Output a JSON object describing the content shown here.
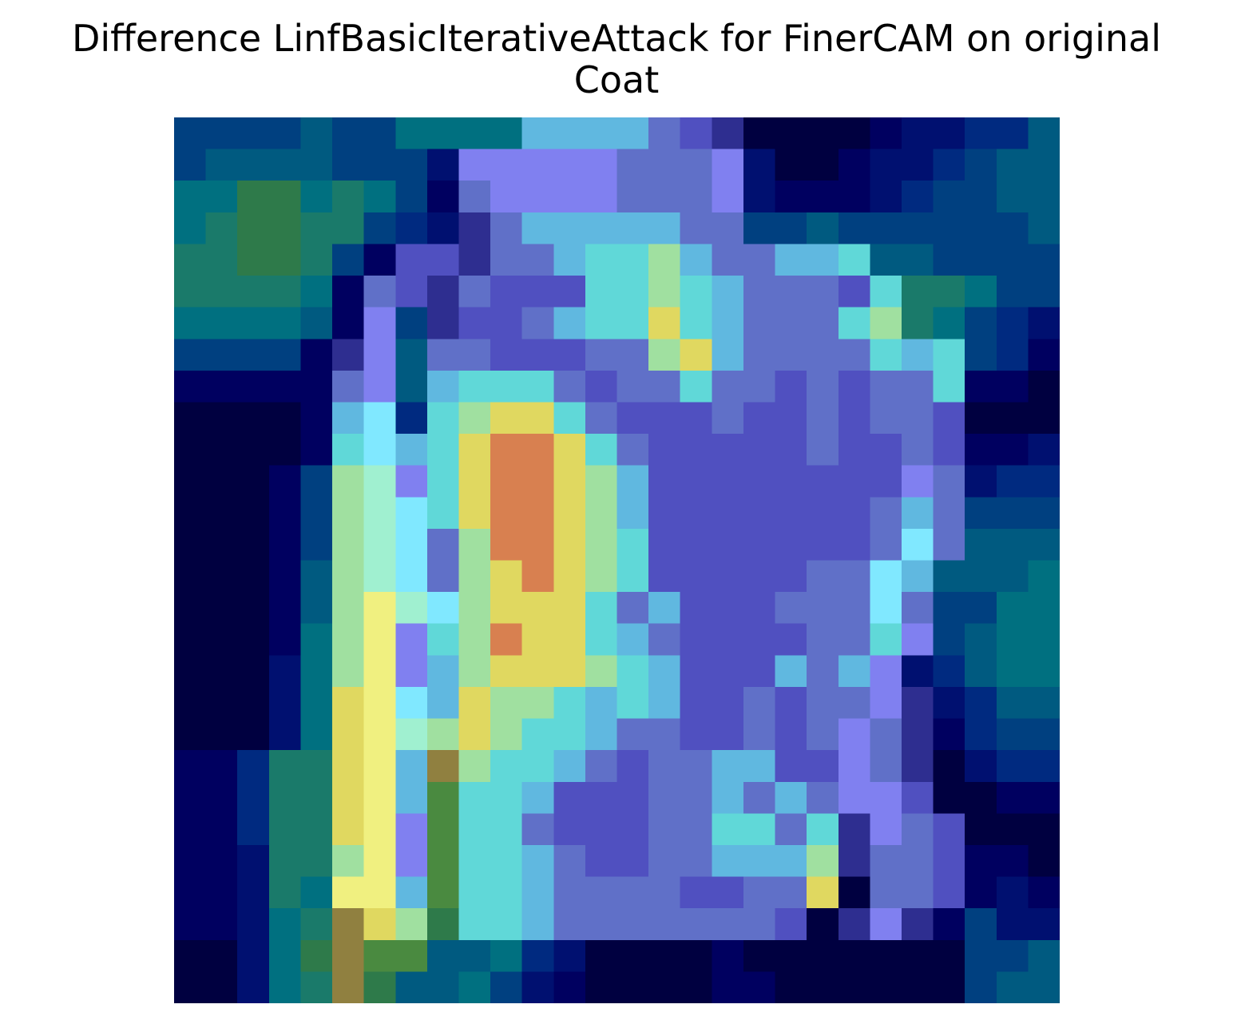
{
  "figure": {
    "title_line1": "Difference LinfBasicIterativeAttack for FinerCAM on original",
    "title_line2": "Coat"
  },
  "heatmap": {
    "description": "Grad-CAM style attribution overlay on a coat image, jet colormap blended with grayscale image; 28x28 grid",
    "rows": 28,
    "cols": 28,
    "palette": {
      "a": "#000040",
      "b": "#000060",
      "c": "#001070",
      "d": "#002a80",
      "e": "#004080",
      "f": "#005a80",
      "g": "#007080",
      "h": "#1a7a6a",
      "i": "#2e7a4a",
      "j": "#6070c8",
      "k": "#8080f0",
      "l": "#5050c0",
      "m": "#60b8e0",
      "n": "#60d8d8",
      "o": "#a0e0a0",
      "p": "#e0d860",
      "q": "#d88050",
      "r": "#f0f080",
      "s": "#80e8ff",
      "t": "#a0f0d0",
      "u": "#70d870",
      "v": "#908040",
      "w": "#4a8a40",
      "x": "#2e2e90"
    },
    "grid": [
      "eeeefeeggggmmmmjlxaaaabccddf",
      "effffeeeckkkkkjjjkcaabccdeff",
      "ggiighgebjkkkkjjjkcbbbcdeeff",
      "ghiihhedcxjmmmmmjjeefeeeeeef",
      "hhiihebllxjjmnnomjjmmnffeeee",
      "hhhhgbjlxjlllnnonmjjjlnhhgee",
      "ggggfbkexlljmnnpnmjjjnohgedc",
      "eeeebxkfjjllljjopmjjjjnmnedb",
      "bbbbbjkfmnnnjljjnjjljljjnbba",
      "aaaabmsdnoppnjllljlljljjlaaa",
      "aaaabnsmnpqqpnjllllljlljlbbc",
      "aaabeotknpqqpomllllllllkjcdd",
      "aaabeotsnpqqpomllllllljmjeee",
      "aaabeotsjoqqponllllllljsjfff",
      "aaabfotsjopqponllllljjsmfffg",
      "aaabfortsopppnjmllljjjsjeegg",
      "aaabgorknoqppnmjlllljjnkefgg",
      "aaacgorkmoppponmlllmjmkcdfgg",
      "aaacgprsmpoonmnmlljljjkxcdff",
      "aaacgprtoponnmjjlljljkjxbdee",
      "bbdhhprmvonnmjljjmmllkjxacdd",
      "bbdhhprmwnnmllljjmjmjkklaabb",
      "bbdhhprkwnnjllljjnnjnxkjlaaa",
      "bbchhorkwnnmjlljjmmmoxjjlbba",
      "bbchgrrmwnnmjjjjlljjpajjlbcb",
      "bbcghvpoinnmjjjjjjjlaxkxbecc",
      "aacgivwwffgdcaaaabaaaaaaaeef",
      "aacghviffgecbaaaabbaaaaaaeff"
    ]
  }
}
